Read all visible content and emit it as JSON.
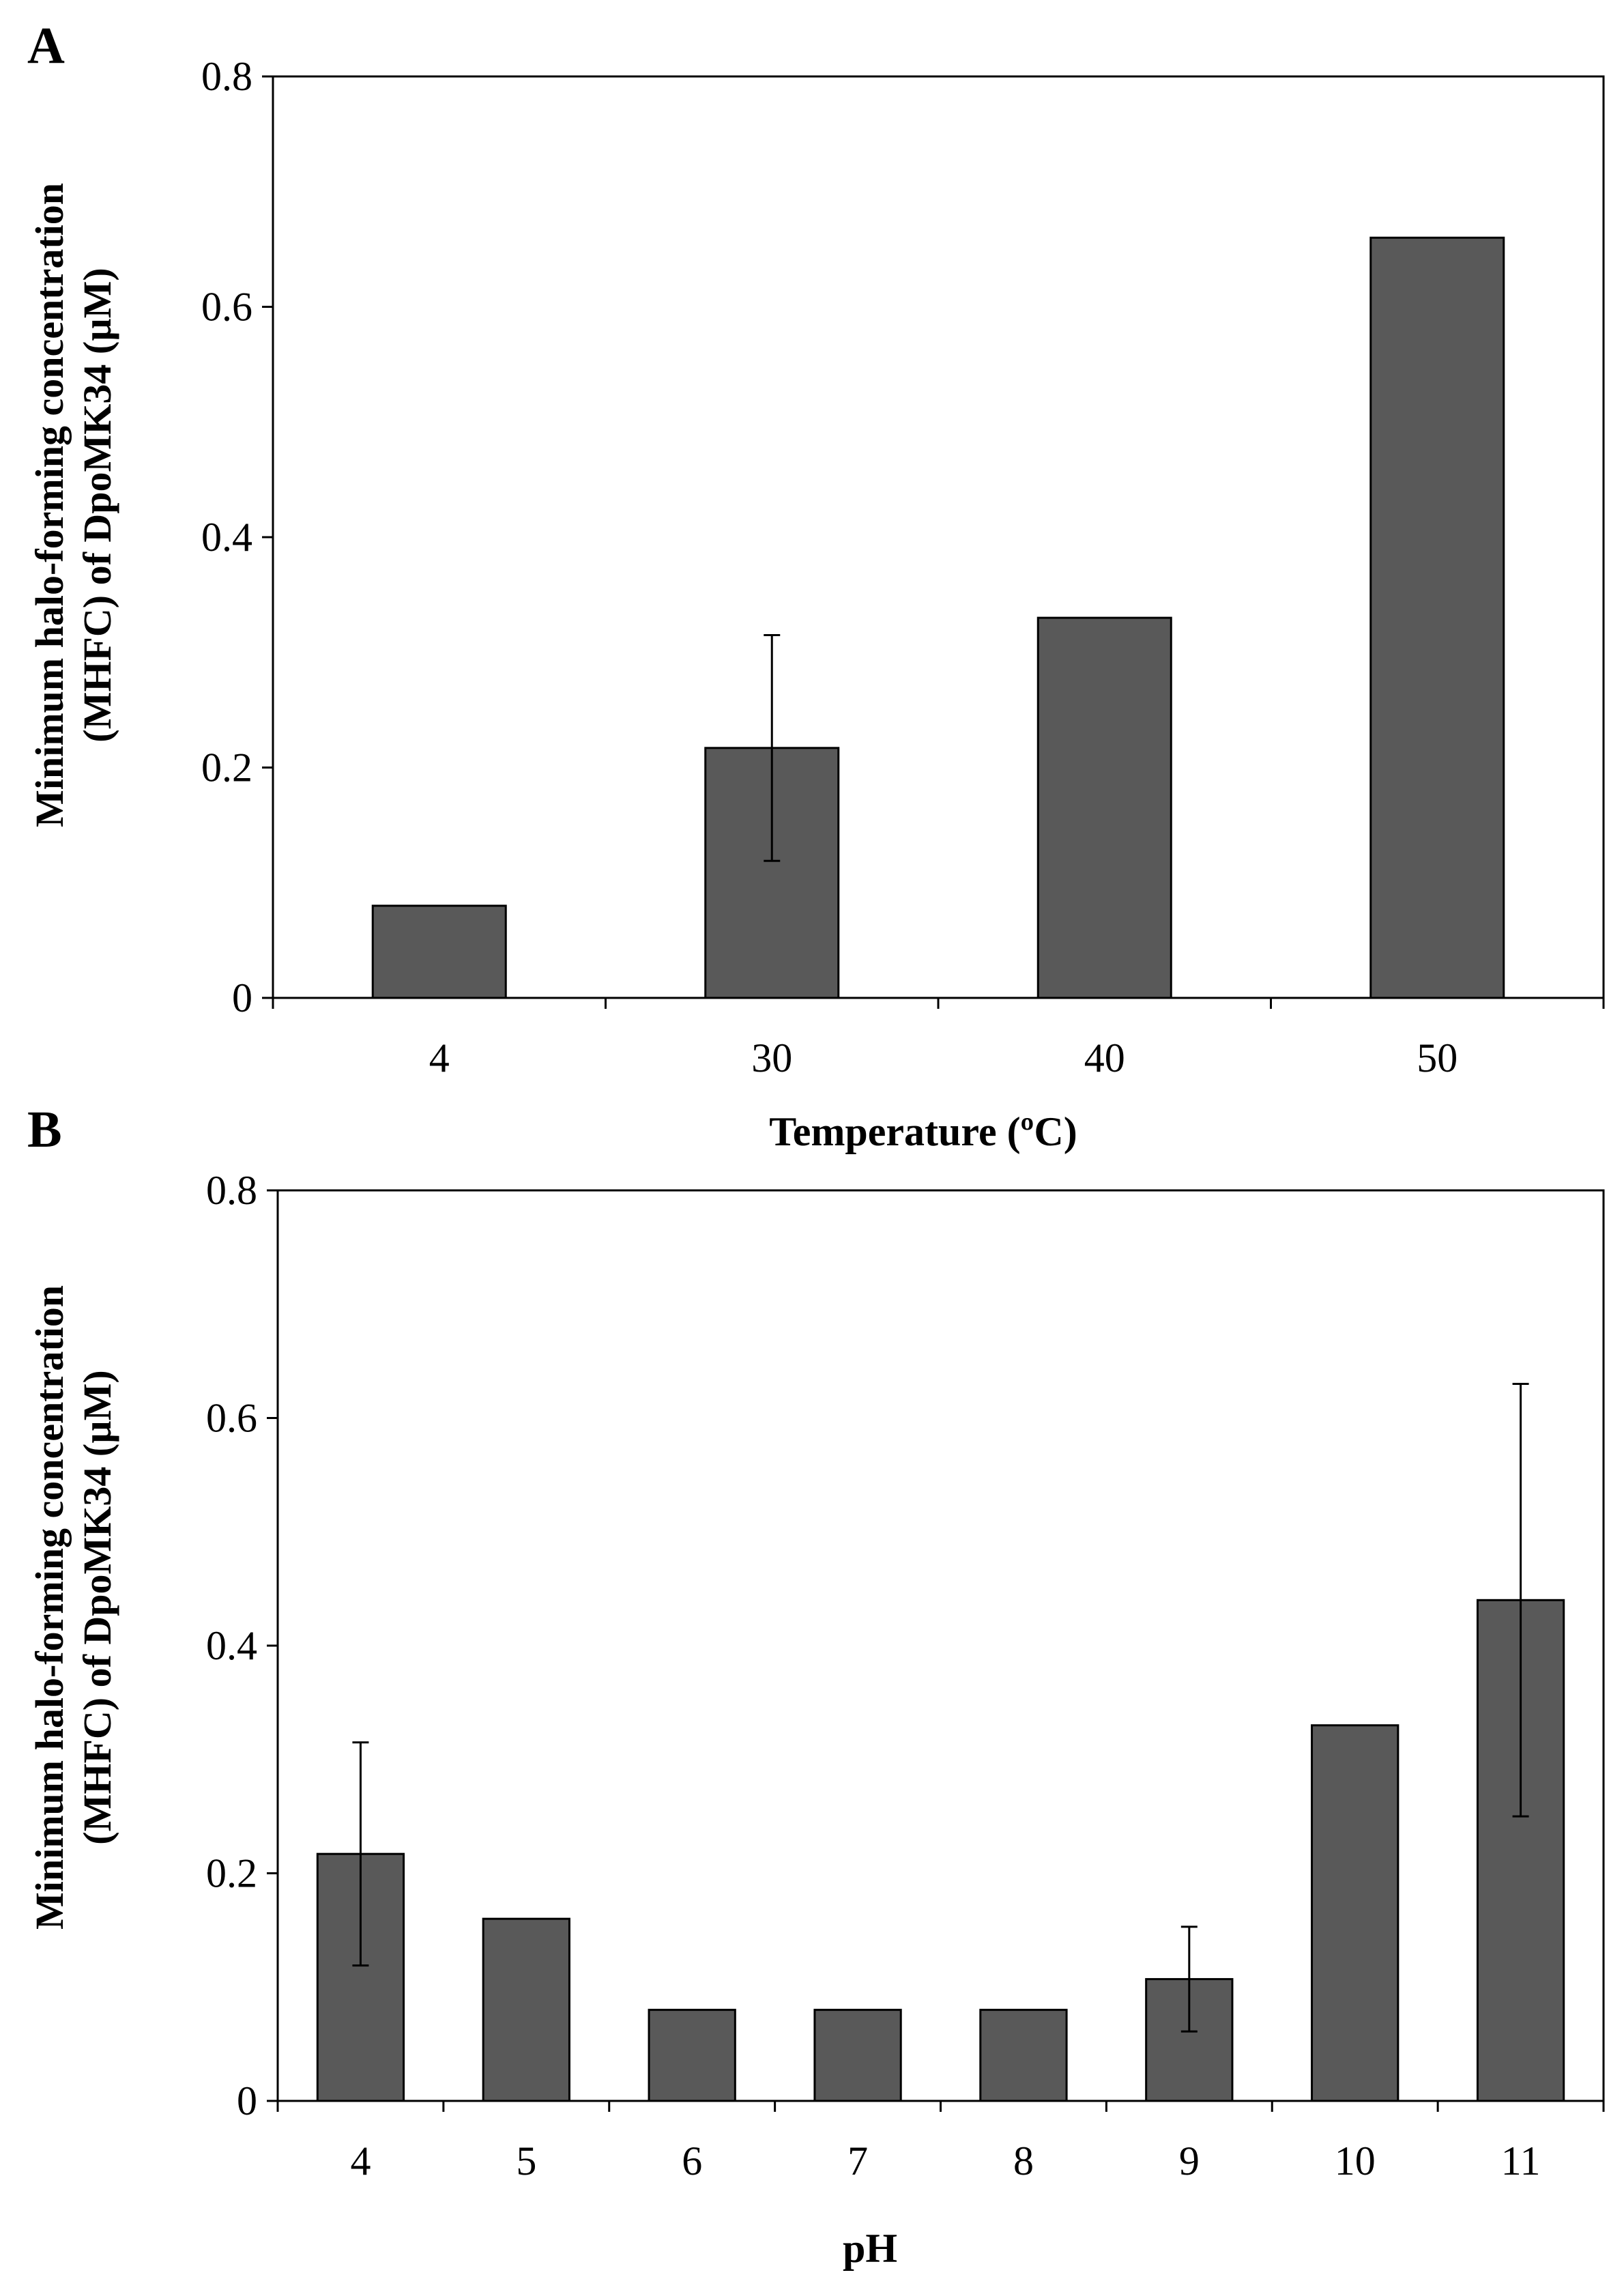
{
  "chart_data": [
    {
      "type": "bar",
      "panel": "A",
      "categories": [
        "4",
        "30",
        "40",
        "50"
      ],
      "values": [
        0.08,
        0.217,
        0.33,
        0.66
      ],
      "errors": [
        null,
        0.098,
        null,
        null
      ],
      "xlabel": "Temperature (ºC)",
      "ylabel_line1": "Minimum halo-forming concentration",
      "ylabel_line2": "(MHFC) of DpoMK34 (µM)",
      "ylim": [
        0,
        0.8
      ],
      "yticks": [
        "0",
        "0.2",
        "0.4",
        "0.6",
        "0.8"
      ],
      "grid": false,
      "bar_color": "#595959"
    },
    {
      "type": "bar",
      "panel": "B",
      "categories": [
        "4",
        "5",
        "6",
        "7",
        "8",
        "9",
        "10",
        "11"
      ],
      "values": [
        0.217,
        0.16,
        0.08,
        0.08,
        0.08,
        0.107,
        0.33,
        0.44
      ],
      "errors": [
        0.098,
        null,
        null,
        null,
        null,
        0.046,
        null,
        0.19
      ],
      "xlabel": "pH",
      "ylabel_line1": "Minimum halo-forming concentration",
      "ylabel_line2": "(MHFC) of DpoMK34 (µM)",
      "ylim": [
        0,
        0.8
      ],
      "yticks": [
        "0",
        "0.2",
        "0.4",
        "0.6",
        "0.8"
      ],
      "grid": false,
      "bar_color": "#595959"
    }
  ]
}
